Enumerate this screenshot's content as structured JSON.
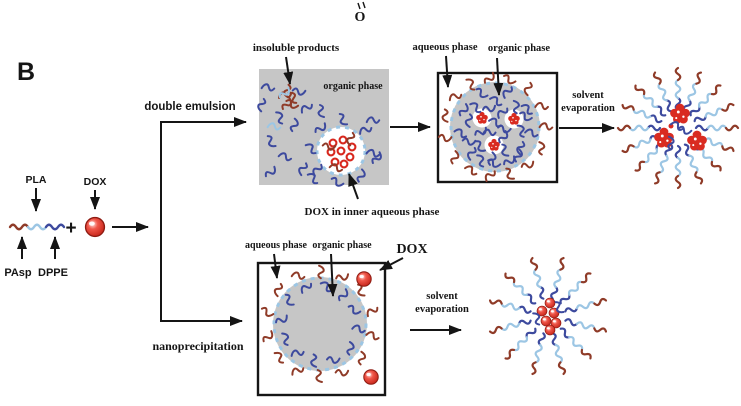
{
  "panel_label": "B",
  "chem_fragment": {
    "atom": "O"
  },
  "reactants": {
    "pla": "PLA",
    "dox": "DOX",
    "plus": "+",
    "pasp": "PAsp",
    "dppe": "DPPE"
  },
  "routes": {
    "double_emulsion": "double emulsion",
    "nanoprecipitation": "nanoprecipitation"
  },
  "emulsion_box": {
    "insoluble_products": "insoluble products",
    "organic_phase": "organic phase",
    "dox_inner_label": "DOX in inner aqueous phase"
  },
  "aqueous_box": {
    "aqueous_phase": "aqueous phase",
    "organic_phase": "organic phase"
  },
  "solvent_evaporation_top": {
    "line1": "solvent",
    "line2": "evaporation"
  },
  "nano_box": {
    "aqueous_phase": "aqueous phase",
    "organic_phase": "organic phase",
    "dox_label": "DOX"
  },
  "solvent_evaporation_bottom": {
    "line1": "solvent",
    "line2": "evaporation"
  },
  "colors": {
    "pla_light_blue": "#9cc6e4",
    "dppe_dark_blue": "#3d4a9e",
    "pasp_dark_red": "#8f3b28",
    "dox_red": "#d92b21",
    "phase_gray": "#c6c6c6"
  }
}
